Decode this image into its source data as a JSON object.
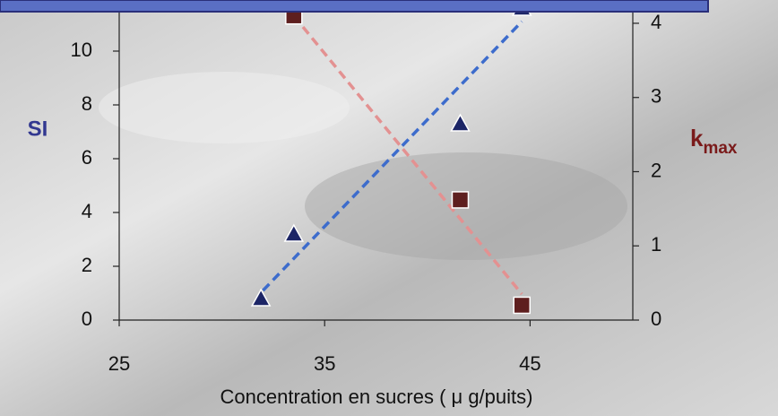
{
  "chart_data": {
    "type": "scatter",
    "xlabel": "Concentration en sucres ( μ g/puits)",
    "ylabel": "SI",
    "y2label": "k",
    "y2label_sub": "max",
    "xlim": [
      25,
      50
    ],
    "xticks": [
      25,
      35,
      45
    ],
    "ylim": [
      0,
      12
    ],
    "yticks": [
      0,
      2,
      4,
      6,
      8,
      10
    ],
    "y2lim": [
      0,
      4.35
    ],
    "y2ticks": [
      0,
      1,
      2,
      3,
      4
    ],
    "series": [
      {
        "type": "scatter",
        "marker": "triangle",
        "color": "#1c2566",
        "x": [
          31.9,
          33.5,
          41.6,
          44.6
        ],
        "values": [
          0.8,
          3.2,
          7.3,
          11.6
        ]
      },
      {
        "type": "scatter",
        "marker": "square",
        "axis": "y2",
        "color": "#5e1f1f",
        "x": [
          33.5,
          41.6,
          44.6
        ],
        "values": [
          4.1,
          1.62,
          0.2
        ]
      },
      {
        "type": "line",
        "dashed": true,
        "color": "#3d6ccc",
        "x": [
          32,
          44.6
        ],
        "values": [
          1.1,
          11.1
        ]
      },
      {
        "type": "line",
        "dashed": true,
        "axis": "y2",
        "color": "#e39191",
        "x": [
          33.5,
          44.6
        ],
        "values": [
          4.1,
          0.35
        ]
      }
    ]
  }
}
